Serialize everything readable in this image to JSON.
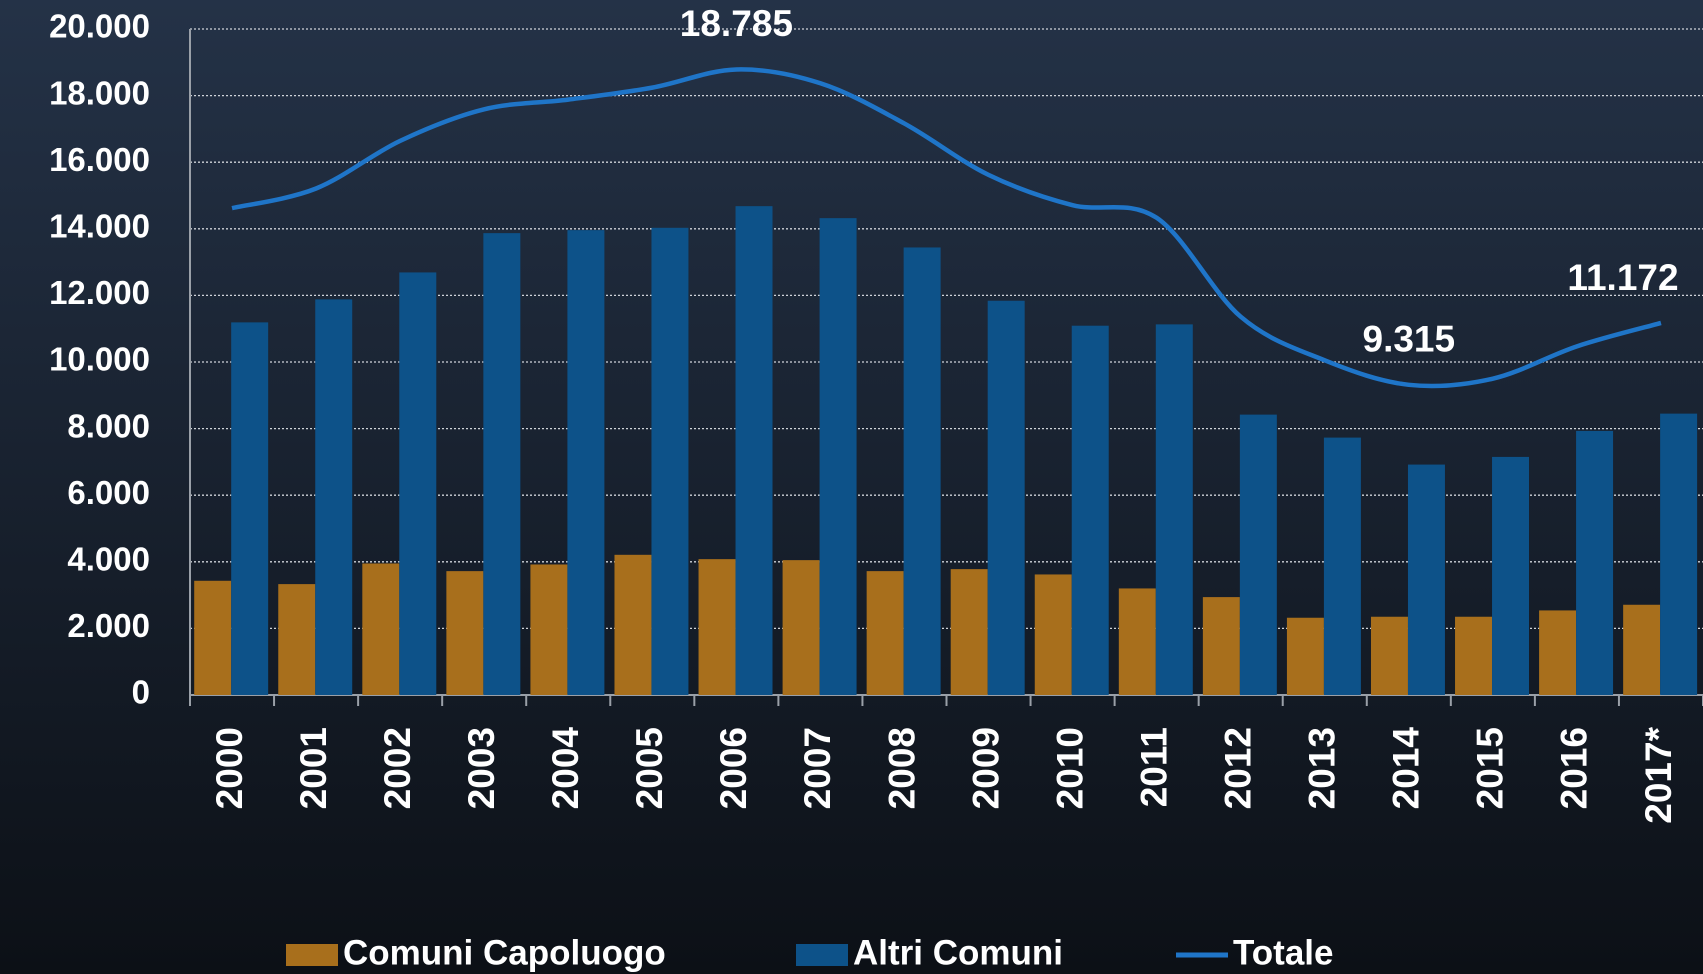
{
  "chart_data": {
    "type": "bar-line",
    "categories": [
      "2000",
      "2001",
      "2002",
      "2003",
      "2004",
      "2005",
      "2006",
      "2007",
      "2008",
      "2009",
      "2010",
      "2011",
      "2012",
      "2013",
      "2014",
      "2015",
      "2016",
      "2017*"
    ],
    "series": [
      {
        "name": "Comuni Capoluogo",
        "type": "bar",
        "color": "#a86f1c",
        "values": [
          3430,
          3330,
          3950,
          3720,
          3920,
          4210,
          4080,
          4050,
          3720,
          3780,
          3620,
          3200,
          2940,
          2320,
          2350,
          2350,
          2540,
          2710
        ]
      },
      {
        "name": "Altri Comuni",
        "type": "bar",
        "color": "#0d5289",
        "values": [
          11190,
          11880,
          12690,
          13870,
          13960,
          14030,
          14680,
          14320,
          13440,
          11840,
          11090,
          11130,
          8420,
          7730,
          6920,
          7150,
          7930,
          8450
        ]
      },
      {
        "name": "Totale",
        "type": "line",
        "color": "#1f75c8",
        "values": [
          14620,
          15210,
          16640,
          17590,
          17880,
          18240,
          18785,
          18370,
          17160,
          15620,
          14710,
          14330,
          11360,
          10050,
          9315,
          9500,
          10470,
          11172
        ],
        "value_labels": [
          null,
          null,
          null,
          null,
          null,
          null,
          "18.785",
          null,
          null,
          null,
          null,
          null,
          null,
          null,
          "9.315",
          null,
          null,
          "11.172"
        ]
      }
    ],
    "ylim": [
      0,
      20000
    ],
    "yticks": [
      0,
      {
        "value": 2000,
        "label": "2.000"
      },
      {
        "value": 4000,
        "label": "4.000"
      },
      {
        "value": 6000,
        "label": "6.000"
      },
      {
        "value": 8000,
        "label": "8.000"
      },
      {
        "value": 10000,
        "label": "10.000"
      },
      {
        "value": 12000,
        "label": "12.000"
      },
      {
        "value": 14000,
        "label": "14.000"
      },
      {
        "value": 16000,
        "label": "16.000"
      },
      {
        "value": 18000,
        "label": "18.000"
      },
      {
        "value": 20000,
        "label": "20.000"
      }
    ],
    "grid": true,
    "legend": "bottom"
  }
}
